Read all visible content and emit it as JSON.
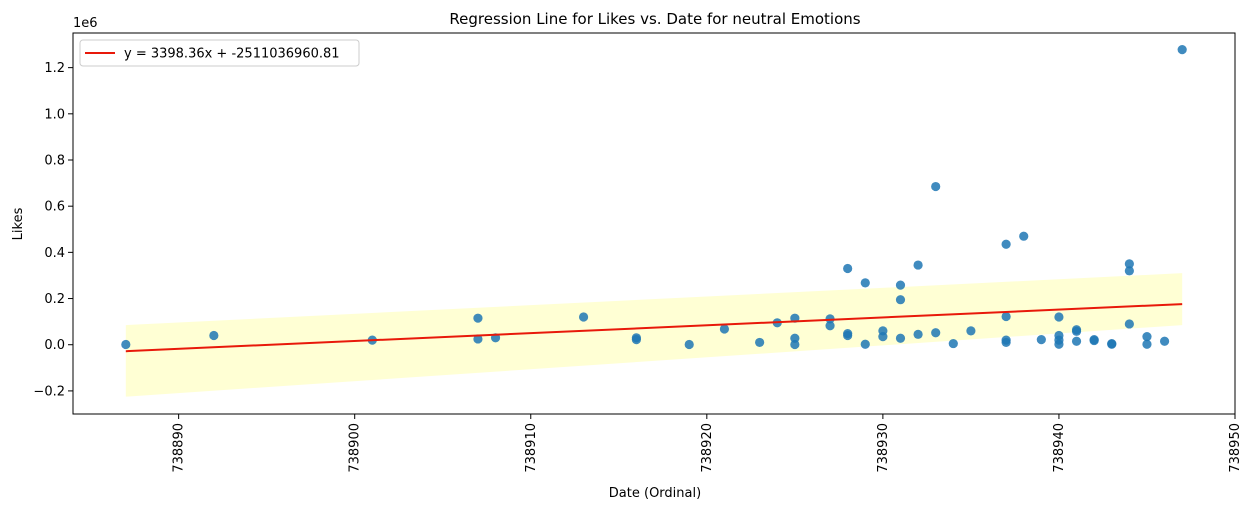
{
  "chart_data": {
    "type": "scatter",
    "title": "Regression Line for Likes vs. Date for neutral Emotions",
    "xlabel": "Date (Ordinal)",
    "ylabel": "Likes",
    "y_offset_label": "1e6",
    "xlim": [
      738884,
      738950
    ],
    "ylim": [
      -0.3,
      1.35
    ],
    "x_ticks": [
      738890,
      738900,
      738910,
      738920,
      738930,
      738940,
      738950
    ],
    "x_tick_labels": [
      "738890",
      "738900",
      "738910",
      "738920",
      "738930",
      "738940",
      "738950"
    ],
    "y_ticks": [
      -0.2,
      0.0,
      0.2,
      0.4,
      0.6,
      0.8,
      1.0,
      1.2
    ],
    "y_tick_labels": [
      "−0.2",
      "0.0",
      "0.2",
      "0.4",
      "0.6",
      "0.8",
      "1.0",
      "1.2"
    ],
    "grid": false,
    "legend": {
      "placement": "top-left",
      "entries": [
        "y = 3398.36x + -2511036960.81"
      ]
    },
    "colors": {
      "points": "#1f77b4",
      "line": "#e8190a",
      "band": "#ffffcc"
    },
    "regression": {
      "label": "y = 3398.36x + -2511036960.81",
      "x": [
        738887,
        738947
      ],
      "y": [
        -0.028,
        0.176
      ]
    },
    "confidence_band": {
      "x": [
        738887,
        738947
      ],
      "upper": [
        0.085,
        0.31
      ],
      "lower": [
        -0.225,
        0.085
      ]
    },
    "points": [
      [
        738887,
        0.001
      ],
      [
        738892,
        0.04
      ],
      [
        738901,
        0.02
      ],
      [
        738907,
        0.115
      ],
      [
        738907,
        0.025
      ],
      [
        738908,
        0.03
      ],
      [
        738913,
        0.12
      ],
      [
        738916,
        0.03
      ],
      [
        738916,
        0.022
      ],
      [
        738919,
        0.001
      ],
      [
        738921,
        0.068
      ],
      [
        738923,
        0.01
      ],
      [
        738924,
        0.095
      ],
      [
        738925,
        0.115
      ],
      [
        738925,
        0.028
      ],
      [
        738925,
        0.001
      ],
      [
        738927,
        0.112
      ],
      [
        738927,
        0.082
      ],
      [
        738928,
        0.33
      ],
      [
        738928,
        0.048
      ],
      [
        738928,
        0.04
      ],
      [
        738929,
        0.268
      ],
      [
        738929,
        0.002
      ],
      [
        738930,
        0.06
      ],
      [
        738930,
        0.035
      ],
      [
        738931,
        0.258
      ],
      [
        738931,
        0.195
      ],
      [
        738931,
        0.028
      ],
      [
        738932,
        0.345
      ],
      [
        738932,
        0.045
      ],
      [
        738933,
        0.685
      ],
      [
        738933,
        0.052
      ],
      [
        738934,
        0.005
      ],
      [
        738935,
        0.06
      ],
      [
        738937,
        0.435
      ],
      [
        738937,
        0.122
      ],
      [
        738937,
        0.02
      ],
      [
        738937,
        0.01
      ],
      [
        738938,
        0.47
      ],
      [
        738939,
        0.022
      ],
      [
        738940,
        0.12
      ],
      [
        738940,
        0.04
      ],
      [
        738940,
        0.02
      ],
      [
        738940,
        0.002
      ],
      [
        738941,
        0.065
      ],
      [
        738941,
        0.058
      ],
      [
        738941,
        0.015
      ],
      [
        738942,
        0.022
      ],
      [
        738942,
        0.018
      ],
      [
        738943,
        0.005
      ],
      [
        738943,
        0.002
      ],
      [
        738944,
        0.35
      ],
      [
        738944,
        0.32
      ],
      [
        738944,
        0.09
      ],
      [
        738945,
        0.035
      ],
      [
        738945,
        0.002
      ],
      [
        738946,
        0.015
      ],
      [
        738947,
        1.278
      ]
    ]
  }
}
